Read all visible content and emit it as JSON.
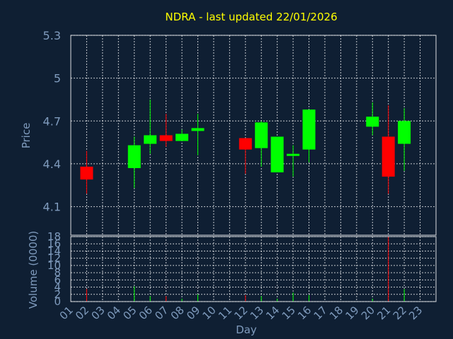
{
  "chart_data": {
    "type": "candlestick",
    "title": "NDRA - last updated 22/01/2026",
    "xlabel": "Day",
    "ylabel": "Price",
    "volume_label": "Volume (0000)",
    "x_ticks": [
      "01",
      "02",
      "03",
      "04",
      "05",
      "06",
      "07",
      "08",
      "09",
      "10",
      "11",
      "12",
      "13",
      "14",
      "15",
      "16",
      "17",
      "18",
      "19",
      "20",
      "21",
      "22",
      "23"
    ],
    "y_ticks": [
      "5.3",
      "5",
      "4.7",
      "4.4",
      "4.1"
    ],
    "ylim": [
      3.9,
      5.3
    ],
    "volume_ticks": [
      "18",
      "16",
      "14",
      "12",
      "10",
      "8",
      "6",
      "4",
      "2",
      "0"
    ],
    "volume_ylim": [
      0,
      18
    ],
    "grid": true,
    "colors": {
      "up": "#00ff00",
      "down": "#ff0000",
      "title": "#ffff00",
      "axis_text": "#7f9bbd",
      "background": "#0f1f33"
    },
    "candles": [
      {
        "day": "02",
        "open": 4.38,
        "high": 4.49,
        "low": 4.19,
        "close": 4.29,
        "volume": 3.5
      },
      {
        "day": "05",
        "open": 4.37,
        "high": 4.59,
        "low": 4.23,
        "close": 4.53,
        "volume": 4.2
      },
      {
        "day": "06",
        "open": 4.54,
        "high": 4.85,
        "low": 4.47,
        "close": 4.6,
        "volume": 1.5
      },
      {
        "day": "07",
        "open": 4.6,
        "high": 4.75,
        "low": 4.52,
        "close": 4.56,
        "volume": 1.5
      },
      {
        "day": "08",
        "open": 4.56,
        "high": 4.64,
        "low": 4.56,
        "close": 4.61,
        "volume": 0.8
      },
      {
        "day": "09",
        "open": 4.63,
        "high": 4.75,
        "low": 4.46,
        "close": 4.65,
        "volume": 2.0
      },
      {
        "day": "12",
        "open": 4.58,
        "high": 4.58,
        "low": 4.33,
        "close": 4.5,
        "volume": 1.8
      },
      {
        "day": "13",
        "open": 4.51,
        "high": 4.7,
        "low": 4.38,
        "close": 4.69,
        "volume": 1.5
      },
      {
        "day": "14",
        "open": 4.34,
        "high": 4.59,
        "low": 4.34,
        "close": 4.59,
        "volume": 0.8
      },
      {
        "day": "15",
        "open": 4.46,
        "high": 4.53,
        "low": 4.31,
        "close": 4.47,
        "volume": 2.5
      },
      {
        "day": "16",
        "open": 4.5,
        "high": 4.78,
        "low": 4.41,
        "close": 4.78,
        "volume": 1.8
      },
      {
        "day": "20",
        "open": 4.66,
        "high": 4.83,
        "low": 4.6,
        "close": 4.73,
        "volume": 0.8
      },
      {
        "day": "21",
        "open": 4.59,
        "high": 4.81,
        "low": 4.19,
        "close": 4.31,
        "volume": 18
      },
      {
        "day": "22",
        "open": 4.54,
        "high": 4.79,
        "low": 4.35,
        "close": 4.7,
        "volume": 3.5
      }
    ]
  }
}
